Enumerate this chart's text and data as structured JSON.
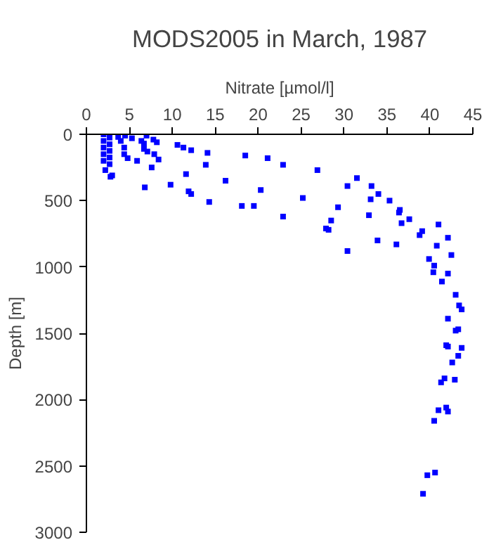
{
  "chart_data": {
    "type": "scatter",
    "title": "MODS2005 in March, 1987",
    "xlabel": "Nitrate [µmol/l]",
    "ylabel": "Depth [m]",
    "xlim": [
      0,
      45
    ],
    "ylim": [
      3000,
      0
    ],
    "xticks": [
      0,
      5,
      10,
      15,
      20,
      25,
      30,
      35,
      40,
      45
    ],
    "yticks": [
      0,
      500,
      1000,
      1500,
      2000,
      2500,
      3000
    ],
    "grid": false,
    "marker": "square",
    "series": [
      {
        "color": "#0000ff",
        "x": [
          2.0,
          2.0,
          2.0,
          2.0,
          2.0,
          2.7,
          2.7,
          2.7,
          2.7,
          2.7,
          3.7,
          4.5,
          4.0,
          4.4,
          4.4,
          4.8,
          5.3,
          5.9,
          6.4,
          6.7,
          6.7,
          7.0,
          7.1,
          7.6,
          7.8,
          7.9,
          8.2,
          8.4,
          6.8,
          3.0,
          2.8,
          2.2,
          9.8,
          10.6,
          11.3,
          12.2,
          11.6,
          11.9,
          12.2,
          14.1,
          13.9,
          14.3,
          16.2,
          18.1,
          18.5,
          19.5,
          20.3,
          21.1,
          22.9,
          22.9,
          25.2,
          26.9,
          29.3,
          28.5,
          27.9,
          28.2,
          30.4,
          30.4,
          31.5,
          33.2,
          34.0,
          33.1,
          32.9,
          33.9,
          35.3,
          36.5,
          36.4,
          36.7,
          37.6,
          36.1,
          38.8,
          39.1,
          41.0,
          40.8,
          39.9,
          40.5,
          40.4,
          41.4,
          42.1,
          42.5,
          42.1,
          43.0,
          43.4,
          43.7,
          42.1,
          43.0,
          43.3,
          41.9,
          42.1,
          43.7,
          43.3,
          42.6,
          41.7,
          41.3,
          42.9,
          41.9,
          42.1,
          41.0,
          40.5,
          40.6,
          39.7,
          39.2
        ],
        "values": [
          0,
          50,
          100,
          150,
          200,
          25,
          75,
          125,
          175,
          225,
          20,
          10,
          50,
          100,
          150,
          180,
          30,
          200,
          50,
          70,
          110,
          10,
          130,
          250,
          40,
          150,
          60,
          190,
          400,
          310,
          320,
          270,
          380,
          80,
          100,
          120,
          300,
          430,
          450,
          140,
          230,
          510,
          350,
          540,
          160,
          540,
          420,
          180,
          230,
          620,
          480,
          270,
          550,
          650,
          710,
          720,
          880,
          390,
          330,
          390,
          450,
          490,
          610,
          800,
          500,
          570,
          590,
          670,
          640,
          830,
          760,
          730,
          680,
          840,
          940,
          990,
          1040,
          1110,
          780,
          910,
          1050,
          1210,
          1290,
          1320,
          1390,
          1480,
          1470,
          1590,
          1600,
          1610,
          1670,
          1720,
          1840,
          1870,
          1850,
          2060,
          2090,
          2080,
          2160,
          2550,
          2570,
          2710
        ]
      }
    ]
  }
}
